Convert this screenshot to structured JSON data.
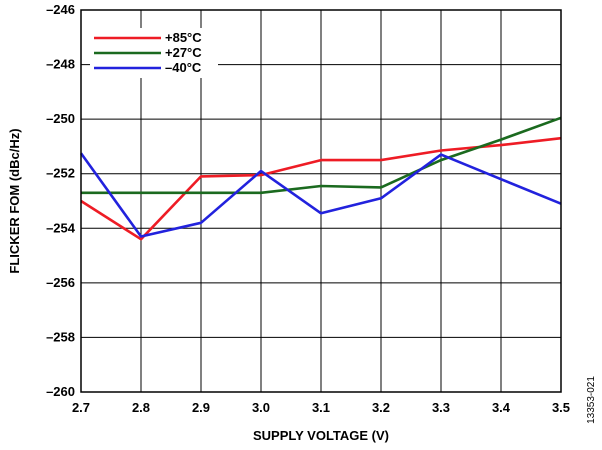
{
  "chart_data": {
    "type": "line",
    "xlabel": "SUPPLY VOLTAGE (V)",
    "ylabel": "FLICKER FOM (dBc/Hz)",
    "xlim": [
      2.7,
      3.5
    ],
    "ylim": [
      -260,
      -246
    ],
    "x_ticks": [
      2.7,
      2.8,
      2.9,
      3.0,
      3.1,
      3.2,
      3.3,
      3.4,
      3.5
    ],
    "x_tick_labels": [
      "2.7",
      "2.8",
      "2.9",
      "3.0",
      "3.1",
      "3.2",
      "3.3",
      "3.4",
      "3.5"
    ],
    "y_ticks": [
      -246,
      -248,
      -250,
      -252,
      -254,
      -256,
      -258,
      -260
    ],
    "y_tick_labels": [
      "–246",
      "–248",
      "–250",
      "–252",
      "–254",
      "–256",
      "–258",
      "–260"
    ],
    "grid": true,
    "legend_position": "top-left",
    "figure_id": "13353-021",
    "series": [
      {
        "name": "+85°C",
        "color": "#ee1c25",
        "x": [
          2.7,
          2.8,
          2.9,
          3.0,
          3.1,
          3.2,
          3.3,
          3.4,
          3.5
        ],
        "y": [
          -253.0,
          -254.4,
          -252.1,
          -252.05,
          -251.5,
          -251.5,
          -251.15,
          -250.95,
          -250.7
        ]
      },
      {
        "name": "+27°C",
        "color": "#1b6a1f",
        "x": [
          2.7,
          2.8,
          2.9,
          3.0,
          3.1,
          3.2,
          3.3,
          3.4,
          3.5
        ],
        "y": [
          -252.7,
          -252.7,
          -252.7,
          -252.7,
          -252.45,
          -252.5,
          -251.5,
          -250.75,
          -249.95
        ]
      },
      {
        "name": "–40°C",
        "color": "#2222dd",
        "x": [
          2.7,
          2.8,
          2.9,
          3.0,
          3.1,
          3.2,
          3.3,
          3.4,
          3.5
        ],
        "y": [
          -251.25,
          -254.3,
          -253.8,
          -251.9,
          -253.45,
          -252.9,
          -251.3,
          -252.2,
          -253.1
        ]
      }
    ]
  }
}
